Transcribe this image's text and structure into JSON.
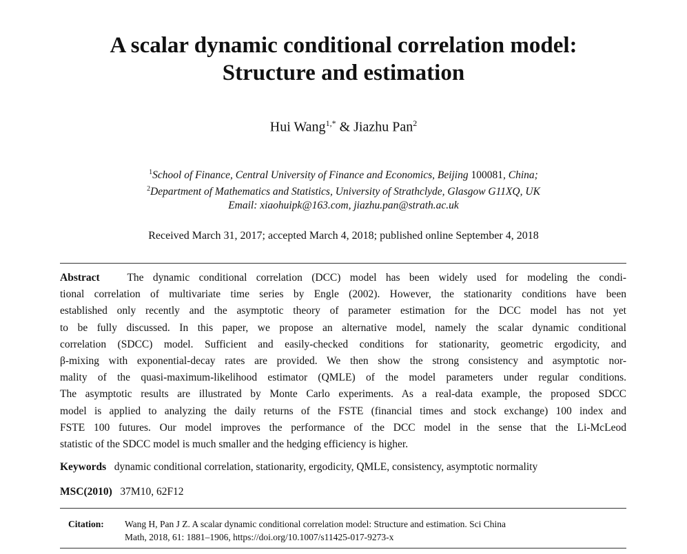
{
  "title": [
    "A scalar dynamic conditional correlation model:",
    "Structure and estimation"
  ],
  "authors": {
    "a1": "Hui Wang",
    "a1_sup": "1,*",
    "sep": " & ",
    "a2": "Jiazhu Pan",
    "a2_sup": "2"
  },
  "affiliations": [
    {
      "sup": "1",
      "text": "School of Finance, Central University of Finance and Economics, Beijing ",
      "num": "100081",
      "tail": ", China;"
    },
    {
      "sup": "2",
      "text": "Department of Mathematics and Statistics, University of Strathclyde, Glasgow G11XQ, UK"
    }
  ],
  "email": "Email: xiaohuipk@163.com, jiazhu.pan@strath.ac.uk",
  "dates": "Received March 31, 2017; accepted March 4, 2018; published online September 4, 2018",
  "abstract": {
    "label": "Abstract",
    "lines": [
      "The dynamic conditional correlation (DCC) model has been widely used for modeling the condi-",
      "tional correlation of multivariate time series by Engle (2002). However, the stationarity conditions have been",
      "established only recently and the asymptotic theory of parameter estimation for the DCC model has not yet",
      "to be fully discussed. In this paper, we propose an alternative model, namely the scalar dynamic conditional",
      "correlation (SDCC) model. Sufficient and easily-checked conditions for stationarity, geometric ergodicity, and",
      "β-mixing with exponential-decay rates are provided. We then show the strong consistency and asymptotic nor-",
      "mality of the quasi-maximum-likelihood estimator (QMLE) of the model parameters under regular conditions.",
      "The asymptotic results are illustrated by Monte Carlo experiments. As a real-data example, the proposed SDCC",
      "model is applied to analyzing the daily returns of the FSTE (financial times and stock exchange) 100 index and",
      "FSTE 100 futures. Our model improves the performance of the DCC model in the sense that the Li-McLeod",
      "statistic of the SDCC model is much smaller and the hedging efficiency is higher."
    ]
  },
  "keywords": {
    "label": "Keywords",
    "text": "dynamic conditional correlation, stationarity, ergodicity, QMLE, consistency, asymptotic normality"
  },
  "msc": {
    "label": "MSC(2010)",
    "text": "37M10, 62F12"
  },
  "citation": {
    "label": "Citation:",
    "lines": [
      "Wang H, Pan J Z. A scalar dynamic conditional correlation model: Structure and estimation. Sci China",
      "Math, 2018, 61: 1881–1906, https://doi.org/10.1007/s11425-017-9273-x"
    ]
  }
}
